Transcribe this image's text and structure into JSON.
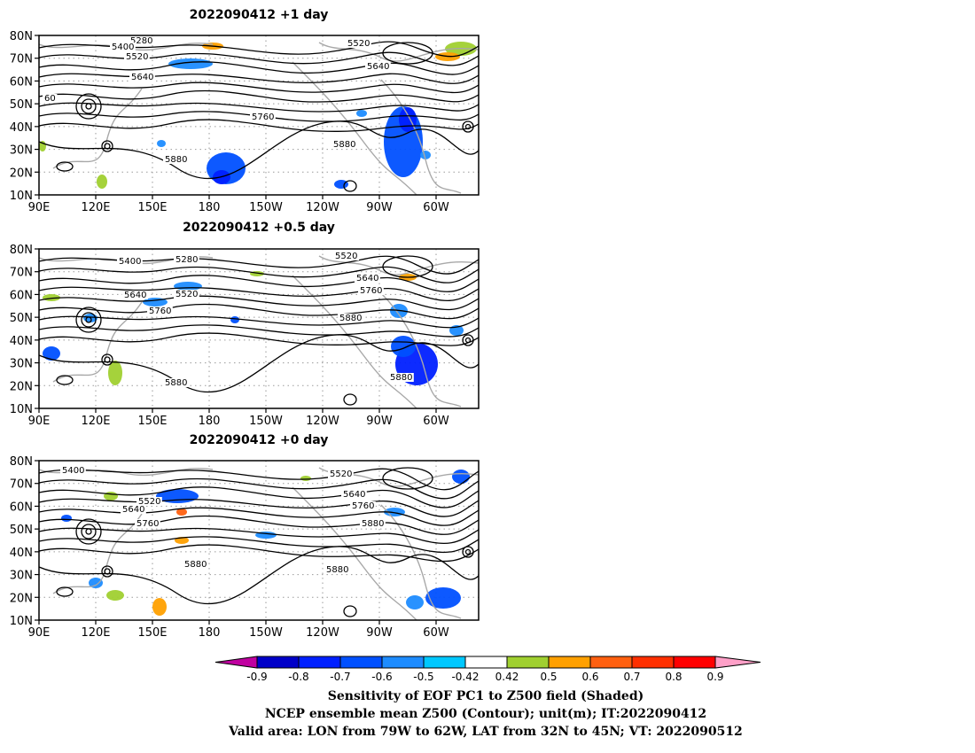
{
  "panels": [
    {
      "title": "2022090412  +1 day",
      "contour_labels": [
        "5280",
        "5400",
        "5520",
        "5640",
        "5760",
        "5880",
        "5520",
        "5640",
        "5880",
        "60"
      ]
    },
    {
      "title": "2022090412  +0.5 day",
      "contour_labels": [
        "5400",
        "5280",
        "5520",
        "5640",
        "5520",
        "5760",
        "5880",
        "5520",
        "5640",
        "5760",
        "5880",
        "5880"
      ]
    },
    {
      "title": "2022090412  +0 day",
      "contour_labels": [
        "5400",
        "5520",
        "5640",
        "5760",
        "5880",
        "5520",
        "5640",
        "5760",
        "5880",
        "5880"
      ]
    }
  ],
  "axes": {
    "lat_ticks": [
      "80N",
      "70N",
      "60N",
      "50N",
      "40N",
      "30N",
      "20N",
      "10N"
    ],
    "lon_ticks": [
      "90E",
      "120E",
      "150E",
      "180",
      "150W",
      "120W",
      "90W",
      "60W"
    ]
  },
  "colorbar": {
    "labels": [
      "-0.9",
      "-0.8",
      "-0.7",
      "-0.6",
      "-0.5",
      "-0.42",
      "0.42",
      "0.5",
      "0.6",
      "0.7",
      "0.8",
      "0.9"
    ],
    "colors": [
      "#c000a0",
      "#0000c8",
      "#0020ff",
      "#0050ff",
      "#1e8cff",
      "#00c8ff",
      "#ffffff",
      "#a0d030",
      "#ffa000",
      "#ff6010",
      "#ff3000",
      "#ff0000",
      "#ffa0c8"
    ]
  },
  "captions": {
    "line1": "Sensitivity of EOF PC1 to Z500 field (Shaded)",
    "line2": "NCEP ensemble mean Z500 (Contour); unit(m); IT:2022090412",
    "line3": "Valid area: LON from 79W to 62W, LAT from 32N to 45N; VT: 2022090512"
  }
}
